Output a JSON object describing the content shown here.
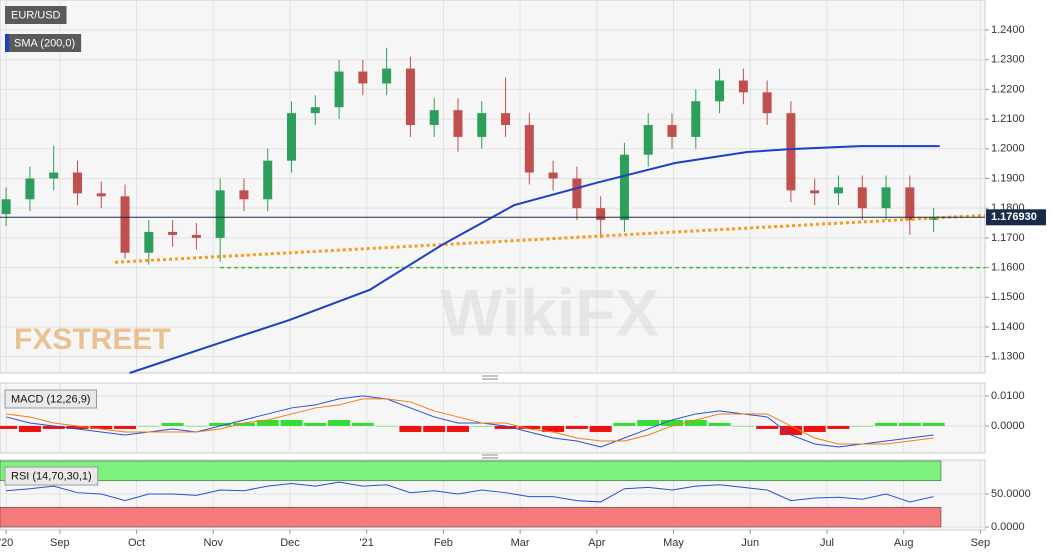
{
  "chart_data": [
    {
      "type": "candlestick",
      "title": "EUR/USD",
      "x": [
        0.3,
        0.61,
        0.92,
        1.23,
        1.54,
        1.85,
        2.16,
        2.47,
        2.78,
        3.09,
        3.4,
        3.71,
        4.02,
        4.33,
        4.64,
        4.95,
        5.26,
        5.57,
        5.88,
        6.19,
        6.5,
        6.81,
        7.12,
        7.43,
        7.74,
        8.05,
        8.36,
        8.67,
        8.98,
        9.29,
        9.6,
        9.91,
        10.22,
        10.53,
        10.84,
        11.15,
        11.46,
        11.77,
        12.08,
        12.39
      ],
      "open": [
        1.178,
        1.183,
        1.19,
        1.192,
        1.185,
        1.184,
        1.165,
        1.172,
        1.171,
        1.17,
        1.186,
        1.183,
        1.196,
        1.212,
        1.214,
        1.226,
        1.222,
        1.227,
        1.208,
        1.213,
        1.204,
        1.212,
        1.208,
        1.192,
        1.19,
        1.18,
        1.176,
        1.198,
        1.208,
        1.204,
        1.216,
        1.223,
        1.219,
        1.212,
        1.186,
        1.185,
        1.187,
        1.18,
        1.187,
        1.176
      ],
      "high": [
        1.187,
        1.194,
        1.201,
        1.196,
        1.189,
        1.188,
        1.176,
        1.176,
        1.175,
        1.19,
        1.19,
        1.2,
        1.216,
        1.218,
        1.23,
        1.23,
        1.234,
        1.231,
        1.217,
        1.217,
        1.216,
        1.224,
        1.212,
        1.196,
        1.194,
        1.184,
        1.202,
        1.212,
        1.212,
        1.22,
        1.227,
        1.227,
        1.223,
        1.216,
        1.19,
        1.191,
        1.191,
        1.191,
        1.191,
        1.18
      ],
      "low": [
        1.174,
        1.179,
        1.186,
        1.181,
        1.18,
        1.163,
        1.161,
        1.167,
        1.166,
        1.162,
        1.179,
        1.179,
        1.192,
        1.208,
        1.21,
        1.218,
        1.218,
        1.204,
        1.204,
        1.199,
        1.2,
        1.204,
        1.188,
        1.186,
        1.176,
        1.17,
        1.172,
        1.194,
        1.2,
        1.2,
        1.212,
        1.215,
        1.208,
        1.182,
        1.181,
        1.181,
        1.176,
        1.176,
        1.171,
        1.172
      ],
      "close": [
        1.183,
        1.19,
        1.192,
        1.185,
        1.184,
        1.165,
        1.172,
        1.171,
        1.17,
        1.186,
        1.183,
        1.196,
        1.212,
        1.214,
        1.226,
        1.222,
        1.227,
        1.208,
        1.213,
        1.204,
        1.212,
        1.208,
        1.192,
        1.19,
        1.18,
        1.176,
        1.198,
        1.208,
        1.204,
        1.216,
        1.223,
        1.219,
        1.212,
        1.186,
        1.185,
        1.187,
        1.18,
        1.187,
        1.176,
        1.177
      ],
      "up_color": "#2e9e5b",
      "down_color": "#c0504d",
      "series": [
        {
          "name": "SMA (200,0)",
          "color": "#1c3fc4",
          "x": [
            1.91,
            3.01,
            4.0,
            5.04,
            5.98,
            6.92,
            7.99,
            9.02,
            9.96,
            10.52,
            11.43,
            12.47
          ],
          "values": [
            1.1245,
            1.134,
            1.1424,
            1.1525,
            1.1676,
            1.181,
            1.1885,
            1.1952,
            1.1989,
            1.1999,
            1.2009,
            1.2009
          ]
        }
      ],
      "trendline": {
        "x": [
          1.72,
          13.06
        ],
        "values": [
          1.1618,
          1.1776
        ],
        "color": "#f39c1f"
      },
      "support": {
        "x": [
          3.09,
          13.06
        ],
        "values": [
          1.16,
          1.16
        ],
        "color": "#2dbb2d"
      },
      "last_price": {
        "value": 1.17693,
        "label": "1.176930"
      },
      "watermarks": [
        "FXSTREET",
        "WikiFX"
      ],
      "xlim": [
        0.22,
        13.06
      ],
      "xticks": [
        {
          "value": 0.3,
          "label": "'20"
        },
        {
          "value": 1,
          "label": "Sep"
        },
        {
          "value": 2,
          "label": "Oct"
        },
        {
          "value": 3,
          "label": "Nov"
        },
        {
          "value": 4,
          "label": "Dec"
        },
        {
          "value": 5,
          "label": "'21"
        },
        {
          "value": 6,
          "label": "Feb"
        },
        {
          "value": 7,
          "label": "Mar"
        },
        {
          "value": 8,
          "label": "Apr"
        },
        {
          "value": 9,
          "label": "May"
        },
        {
          "value": 10,
          "label": "Jun"
        },
        {
          "value": 11,
          "label": "Jul"
        },
        {
          "value": 12,
          "label": "Aug"
        },
        {
          "value": 13,
          "label": "Sep"
        }
      ],
      "ylim": [
        1.1245,
        1.2501
      ],
      "yticks": [
        {
          "value": 1.24,
          "label": "1.2400"
        },
        {
          "value": 1.23,
          "label": "1.2300"
        },
        {
          "value": 1.22,
          "label": "1.2200"
        },
        {
          "value": 1.21,
          "label": "1.2100"
        },
        {
          "value": 1.2,
          "label": "1.2000"
        },
        {
          "value": 1.19,
          "label": "1.1900"
        },
        {
          "value": 1.18,
          "label": "1.1800"
        },
        {
          "value": 1.17,
          "label": "1.1700"
        },
        {
          "value": 1.16,
          "label": "1.1600"
        },
        {
          "value": 1.15,
          "label": "1.1500"
        },
        {
          "value": 1.14,
          "label": "1.1400"
        },
        {
          "value": 1.13,
          "label": "1.1300"
        }
      ],
      "grid": true
    },
    {
      "type": "combo",
      "title": "MACD (12,26,9)",
      "x": [
        0.3,
        0.61,
        0.92,
        1.23,
        1.54,
        1.85,
        2.16,
        2.47,
        2.78,
        3.09,
        3.4,
        3.71,
        4.02,
        4.33,
        4.64,
        4.95,
        5.26,
        5.57,
        5.88,
        6.19,
        6.5,
        6.81,
        7.12,
        7.43,
        7.74,
        8.05,
        8.36,
        8.67,
        8.98,
        9.29,
        9.6,
        9.91,
        10.22,
        10.53,
        10.84,
        11.15,
        11.46,
        11.77,
        12.08,
        12.39
      ],
      "series": [
        {
          "kind": "bar",
          "pos_color": "#33dd33",
          "neg_color": "#ee1111",
          "values": [
            -0.001,
            -0.002,
            -0.001,
            -0.001,
            -0.001,
            -0.001,
            0,
            0.001,
            0,
            0.001,
            0.001,
            0.002,
            0.002,
            0.001,
            0.002,
            0.001,
            0,
            -0.002,
            -0.002,
            -0.002,
            0,
            -0.001,
            -0.001,
            -0.002,
            -0.001,
            -0.002,
            0.001,
            0.002,
            0.002,
            0.002,
            0.001,
            0,
            -0.001,
            -0.003,
            -0.002,
            -0.001,
            0,
            0.001,
            0.001,
            0.001
          ]
        },
        {
          "kind": "line",
          "color": "#2a4fd6",
          "values": [
            0.003,
            0.001,
            0.0,
            -0.001,
            -0.002,
            -0.003,
            -0.002,
            -0.001,
            -0.002,
            0.0,
            0.002,
            0.004,
            0.006,
            0.007,
            0.009,
            0.01,
            0.009,
            0.006,
            0.003,
            0.001,
            0.001,
            0.0,
            -0.002,
            -0.004,
            -0.005,
            -0.007,
            -0.004,
            -0.001,
            0.002,
            0.004,
            0.005,
            0.004,
            0.003,
            -0.003,
            -0.006,
            -0.007,
            -0.006,
            -0.005,
            -0.004,
            -0.003
          ]
        },
        {
          "kind": "line",
          "color": "#f07d1a",
          "values": [
            0.004,
            0.003,
            0.001,
            0.0,
            -0.001,
            -0.002,
            -0.002,
            -0.002,
            -0.002,
            -0.001,
            0.001,
            0.002,
            0.004,
            0.006,
            0.007,
            0.009,
            0.009,
            0.008,
            0.005,
            0.003,
            0.001,
            0.001,
            -0.001,
            -0.002,
            -0.004,
            -0.005,
            -0.005,
            -0.003,
            0.0,
            0.002,
            0.004,
            0.004,
            0.004,
            0.0,
            -0.004,
            -0.006,
            -0.006,
            -0.006,
            -0.005,
            -0.004
          ]
        }
      ],
      "ylim": [
        -0.009,
        0.0143
      ],
      "yticks": [
        {
          "value": 0.01,
          "label": "0.0100"
        },
        {
          "value": 0,
          "label": "0.0000"
        }
      ]
    },
    {
      "type": "line",
      "title": "RSI (14,70,30,1)",
      "x": [
        0.3,
        0.61,
        0.92,
        1.23,
        1.54,
        1.85,
        2.16,
        2.47,
        2.78,
        3.09,
        3.4,
        3.71,
        4.02,
        4.33,
        4.64,
        4.95,
        5.26,
        5.57,
        5.88,
        6.19,
        6.5,
        6.81,
        7.12,
        7.43,
        7.74,
        8.05,
        8.36,
        8.67,
        8.98,
        9.29,
        9.6,
        9.91,
        10.22,
        10.53,
        10.84,
        11.15,
        11.46,
        11.77,
        12.08,
        12.39
      ],
      "series": [
        {
          "color": "#2a4fd6",
          "values": [
            55,
            58,
            62,
            52,
            50,
            40,
            50,
            50,
            48,
            56,
            55,
            62,
            66,
            62,
            68,
            62,
            64,
            52,
            55,
            50,
            56,
            52,
            46,
            46,
            40,
            38,
            58,
            60,
            56,
            62,
            64,
            60,
            56,
            40,
            44,
            45,
            42,
            50,
            38,
            46
          ]
        }
      ],
      "bands": [
        {
          "from": 70,
          "to": 100,
          "color": "#7cf27c"
        },
        {
          "from": 0,
          "to": 30,
          "color": "#f47b7b"
        }
      ],
      "ylim": [
        -4.5,
        101.5
      ],
      "yticks": [
        {
          "value": 50,
          "label": "50.0000"
        },
        {
          "value": 0,
          "label": "0.0000"
        }
      ]
    }
  ]
}
